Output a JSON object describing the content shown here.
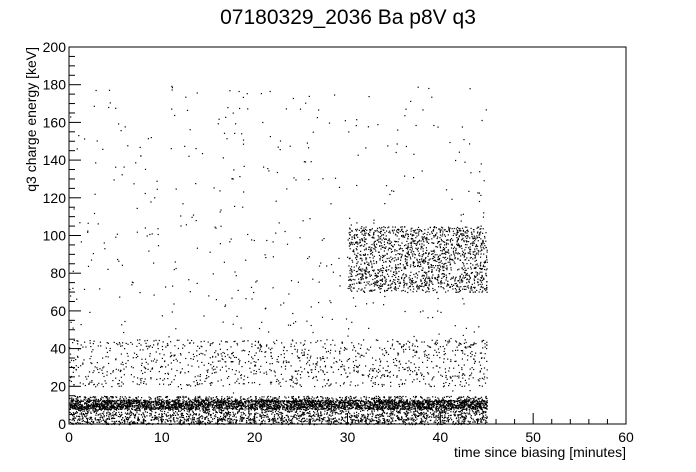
{
  "chart_data": {
    "type": "scatter",
    "title": "07180329_2036 Ba p8V q3",
    "xlabel": "time since biasing [minutes]",
    "ylabel": "q3 charge energy [keV]",
    "xlim": [
      0,
      60
    ],
    "ylim": [
      0,
      200
    ],
    "x_ticks": [
      "0",
      "10",
      "20",
      "30",
      "40",
      "50",
      "60"
    ],
    "y_ticks": [
      "0",
      "20",
      "40",
      "60",
      "80",
      "100",
      "120",
      "140",
      "160",
      "180",
      "200"
    ],
    "grid": false,
    "legend": "none",
    "colors": {
      "marker": "#000000",
      "frame": "#000000",
      "background": "#ffffff"
    },
    "data_extent": {
      "x": [
        0,
        45
      ],
      "y": [
        0,
        180
      ]
    },
    "density_regions": [
      {
        "x": [
          0,
          45
        ],
        "y": [
          0,
          15
        ],
        "weight": 6
      },
      {
        "x": [
          0,
          45
        ],
        "y": [
          8,
          13
        ],
        "weight": 5
      },
      {
        "x": [
          30,
          45
        ],
        "y": [
          70,
          105
        ],
        "weight": 3
      },
      {
        "x": [
          0,
          45
        ],
        "y": [
          20,
          45
        ],
        "weight": 2
      },
      {
        "x": [
          0,
          45
        ],
        "y": [
          0,
          180
        ],
        "weight": 1
      }
    ]
  }
}
